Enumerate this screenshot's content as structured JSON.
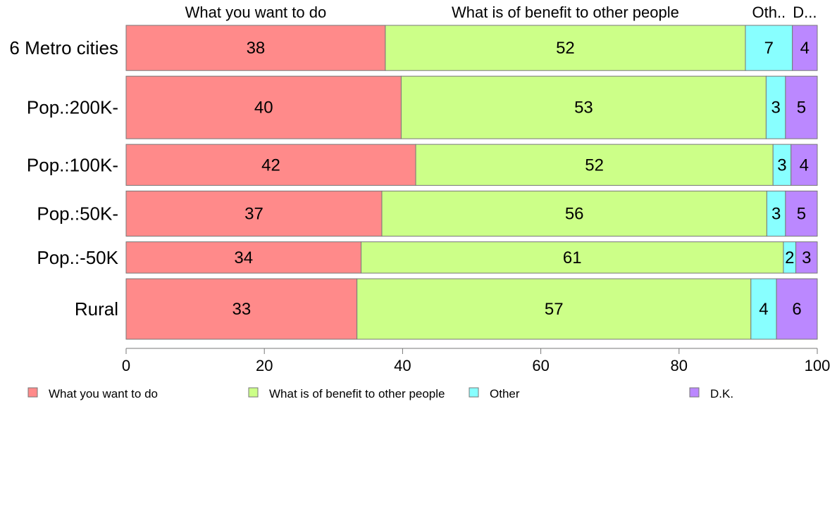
{
  "chart_data": {
    "type": "bar",
    "orientation": "horizontal",
    "stacked": true,
    "categories": [
      "6 Metro cities",
      "Pop.:200K-",
      "Pop.:100K-",
      "Pop.:50K-",
      "Pop.:-50K",
      "Rural"
    ],
    "series": [
      {
        "name": "What you want to do",
        "color": "#ff8a8a",
        "values": [
          37.5,
          39.8,
          41.9,
          37.0,
          34.0,
          33.4
        ],
        "labels": [
          "38",
          "40",
          "42",
          "37",
          "34",
          "33"
        ]
      },
      {
        "name": "What is of benefit to other people",
        "color": "#ccff88",
        "values": [
          52.1,
          52.8,
          51.7,
          55.7,
          61.1,
          57.0
        ],
        "labels": [
          "52",
          "53",
          "52",
          "56",
          "61",
          "57"
        ]
      },
      {
        "name": "Other",
        "color": "#88ffff",
        "values": [
          6.8,
          2.8,
          2.6,
          2.7,
          1.8,
          3.7
        ],
        "labels": [
          "7",
          "3",
          "3",
          "3",
          "2",
          "4"
        ]
      },
      {
        "name": "D.K.",
        "color": "#bb88ff",
        "values": [
          3.6,
          4.6,
          3.8,
          4.6,
          3.1,
          5.9
        ],
        "labels": [
          "4",
          "5",
          "4",
          "5",
          "3",
          "6"
        ]
      }
    ],
    "top_labels": [
      "What you want to do",
      "What is of benefit to other people",
      "Oth..",
      "D..."
    ],
    "bar_weights": [
      65,
      90,
      59,
      65,
      45,
      87
    ],
    "xlim": [
      0,
      100
    ],
    "xticks": [
      0,
      20,
      40,
      60,
      80,
      100
    ],
    "xtick_labels": [
      "0",
      "20",
      "40",
      "60",
      "80",
      "100"
    ],
    "grid": false,
    "legend_position": "bottom"
  }
}
